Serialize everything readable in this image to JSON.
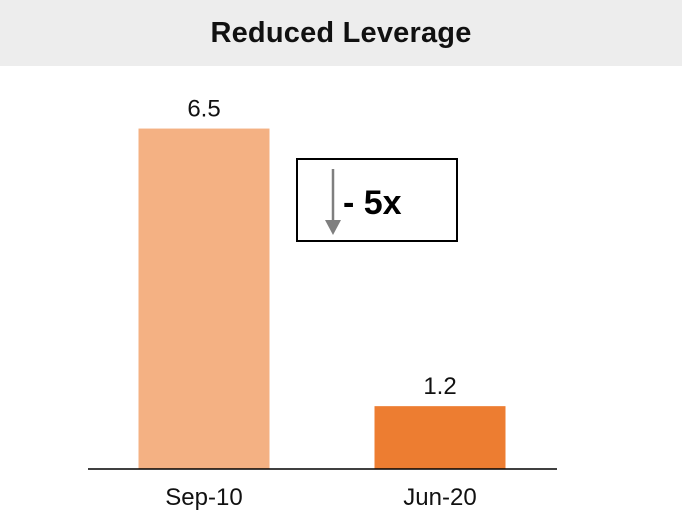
{
  "title": "Reduced Leverage",
  "callout": {
    "text": "- 5x",
    "icon": "arrow-down-icon",
    "arrow_color": "#7f7f7f"
  },
  "chart_data": {
    "type": "bar",
    "categories": [
      "Sep-10",
      "Jun-20"
    ],
    "values": [
      6.5,
      1.2
    ],
    "data_labels": [
      "6.5",
      "1.2"
    ],
    "colors": [
      "#f4b183",
      "#ed7d31"
    ],
    "ylim": [
      0,
      8
    ],
    "grid": false,
    "legend": "none",
    "xlabel": "",
    "ylabel": ""
  }
}
